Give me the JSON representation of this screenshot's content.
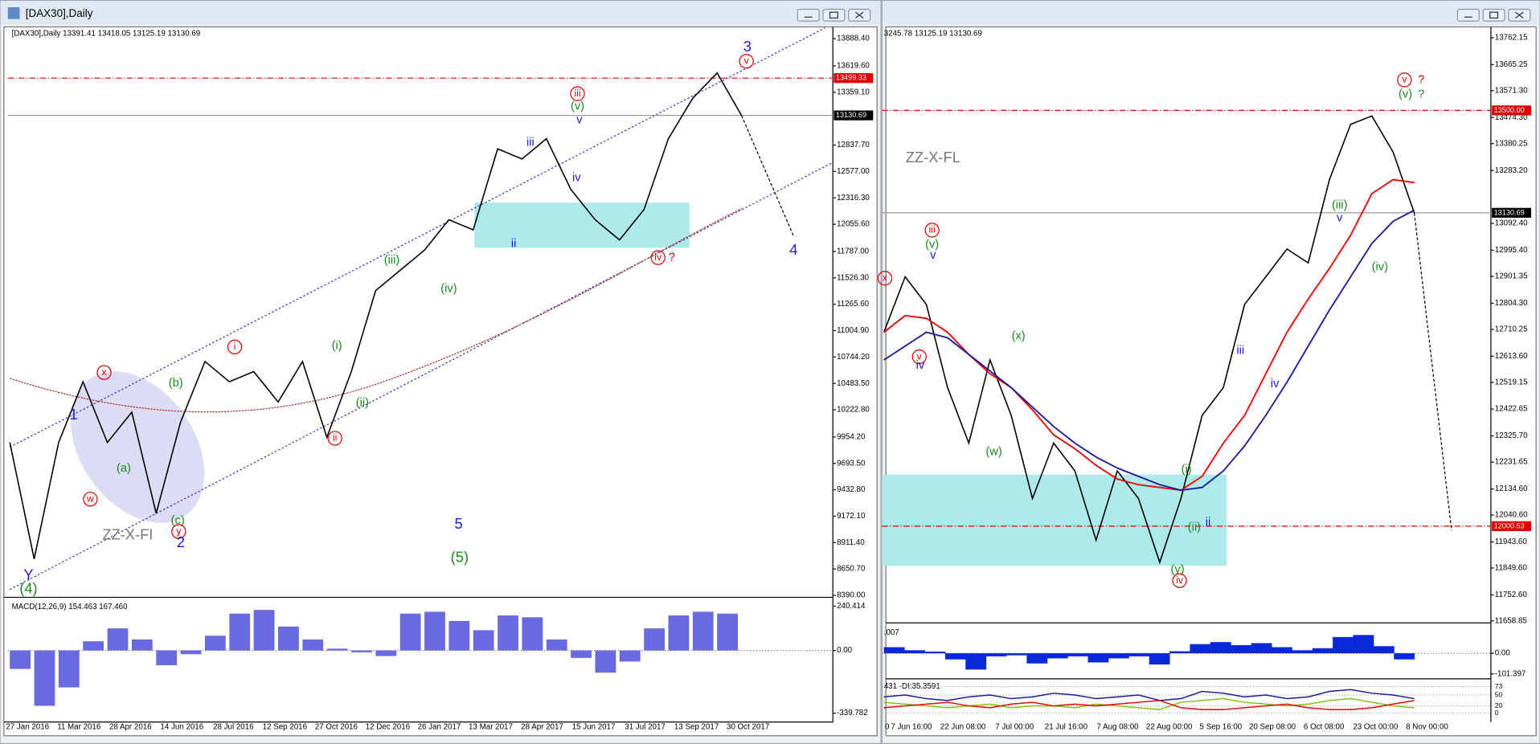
{
  "windows": [
    {
      "title": "[DAX30],Daily",
      "header": "[DAX30],Daily  13391.41 13418.05 13125.19 13130.69",
      "price_axis": [
        "13888.40",
        "13619.60",
        "13359.10",
        "12837.70",
        "12577.00",
        "12316.30",
        "12055.60",
        "11787.00",
        "11526.30",
        "11265.60",
        "11004.90",
        "10744.20",
        "10483.50",
        "10222.80",
        "9954.20",
        "9693.50",
        "9432.80",
        "9172.10",
        "8911.40",
        "8650.70",
        "8390.00"
      ],
      "price_markers": [
        "13499.33",
        "13130.69"
      ],
      "dates": [
        "27 Jan 2016",
        "11 Mar 2016",
        "28 Apr 2016",
        "14 Jun 2016",
        "28 Jul 2016",
        "12 Sep 2016",
        "27 Oct 2016",
        "12 Dec 2016",
        "26 Jan 2017",
        "13 Mar 2017",
        "28 Apr 2017",
        "15 Jun 2017",
        "31 Jul 2017",
        "13 Sep 2017",
        "30 Oct 2017"
      ],
      "price_path": [
        9900,
        8750,
        9900,
        10500,
        9900,
        10200,
        9200,
        10100,
        10700,
        10500,
        10600,
        10300,
        10700,
        9950,
        10600,
        11400,
        11600,
        11800,
        12100,
        12000,
        12800,
        12700,
        12900,
        12400,
        12100,
        11900,
        12200,
        12900,
        13300,
        13550,
        13130
      ],
      "wave_labels": [
        "3",
        "v",
        "iii",
        "(v)",
        "v",
        "iii",
        "iv",
        "ii",
        "iv",
        "?",
        "4",
        "(iii)",
        "(iv)",
        "i",
        "(i)",
        "(ii)",
        "ii",
        "x",
        "(b)",
        "1",
        "(a)",
        "w",
        "(c)",
        "y",
        "2",
        "ZZ-X-FI",
        "5",
        "(5)",
        "Y",
        "(4)"
      ],
      "indicator": {
        "label": "MACD(12,26,9) 154.463 167.460",
        "axis": [
          "240.414",
          "0.00",
          "-339.782"
        ],
        "histogram": [
          -100,
          -300,
          -200,
          50,
          120,
          60,
          -80,
          -20,
          80,
          200,
          220,
          130,
          60,
          10,
          -10,
          -30,
          200,
          210,
          160,
          110,
          190,
          180,
          60,
          -40,
          -120,
          -60,
          120,
          190,
          210,
          200
        ]
      }
    },
    {
      "header": "3245.78 13125.19 13130.69",
      "price_axis": [
        "13762.15",
        "13665.25",
        "13571.30",
        "13474.30",
        "13380.25",
        "13283.20",
        "13092.40",
        "12995.40",
        "12901.35",
        "12804.30",
        "12710.25",
        "12613.60",
        "12519.15",
        "12422.65",
        "12325.70",
        "12231.65",
        "12134.60",
        "12040.60",
        "11943.60",
        "11849.60",
        "11752.60",
        "11658.85"
      ],
      "price_markers": [
        "13500.00",
        "13130.69",
        "12000.53"
      ],
      "dates": [
        "0",
        "7 Jun 16:00",
        "22 Jun 08:00",
        "7 Jul 00:00",
        "21 Jul 16:00",
        "7 Aug 08:00",
        "22 Aug 00:00",
        "5 Sep 16:00",
        "20 Sep 08:00",
        "6 Oct 08:00",
        "23 Oct 00:00",
        "8 Nov 00:00"
      ],
      "price_path": [
        12700,
        12900,
        12800,
        12500,
        12300,
        12600,
        12400,
        12100,
        12300,
        12200,
        11950,
        12200,
        12100,
        11870,
        12100,
        12400,
        12500,
        12800,
        12900,
        13000,
        12950,
        13250,
        13450,
        13480,
        13350,
        13130
      ],
      "ma_red": [
        12700,
        12760,
        12750,
        12700,
        12620,
        12550,
        12500,
        12420,
        12330,
        12280,
        12220,
        12170,
        12150,
        12140,
        12130,
        12180,
        12300,
        12400,
        12550,
        12700,
        12820,
        12930,
        13050,
        13200,
        13250,
        13240
      ],
      "ma_blue": [
        12600,
        12650,
        12700,
        12680,
        12620,
        12560,
        12500,
        12430,
        12360,
        12300,
        12250,
        12210,
        12180,
        12150,
        12130,
        12140,
        12200,
        12290,
        12400,
        12520,
        12650,
        12780,
        12900,
        13020,
        13100,
        13140
      ],
      "wave_labels": [
        "ZZ-X-FL",
        "iii",
        "(v)",
        "v",
        "x",
        "v",
        "iv",
        "(x)",
        "(w)",
        "iii",
        "iv",
        "(iii)",
        "v",
        "(iv)",
        "v",
        "?",
        "(v)",
        "?",
        "(i)",
        "ii",
        "(ii)",
        "(y)",
        "iv"
      ],
      "indicator": {
        "label": ".007",
        "axis": [
          "0.00",
          "-101.397"
        ],
        "histogram": [
          30,
          15,
          8,
          -30,
          -80,
          -15,
          -10,
          -50,
          -25,
          -15,
          -45,
          -25,
          -15,
          -55,
          10,
          45,
          55,
          40,
          50,
          30,
          15,
          25,
          80,
          90,
          35,
          -30
        ]
      },
      "adx": {
        "label": "431 -DI:35.3591",
        "axis": [
          73,
          50,
          20,
          0
        ],
        "adx": [
          45,
          50,
          40,
          35,
          45,
          50,
          40,
          45,
          55,
          50,
          40,
          45,
          50,
          35,
          40,
          60,
          55,
          45,
          50,
          40,
          45,
          60,
          65,
          55,
          50,
          40
        ],
        "plus_di": [
          30,
          25,
          20,
          15,
          20,
          25,
          15,
          20,
          20,
          15,
          25,
          20,
          15,
          10,
          30,
          35,
          40,
          30,
          25,
          20,
          25,
          35,
          40,
          30,
          20,
          15
        ],
        "minus_di": [
          15,
          20,
          25,
          30,
          20,
          15,
          25,
          30,
          20,
          25,
          20,
          25,
          30,
          35,
          15,
          10,
          10,
          15,
          20,
          25,
          15,
          10,
          10,
          15,
          25,
          35
        ]
      }
    }
  ]
}
